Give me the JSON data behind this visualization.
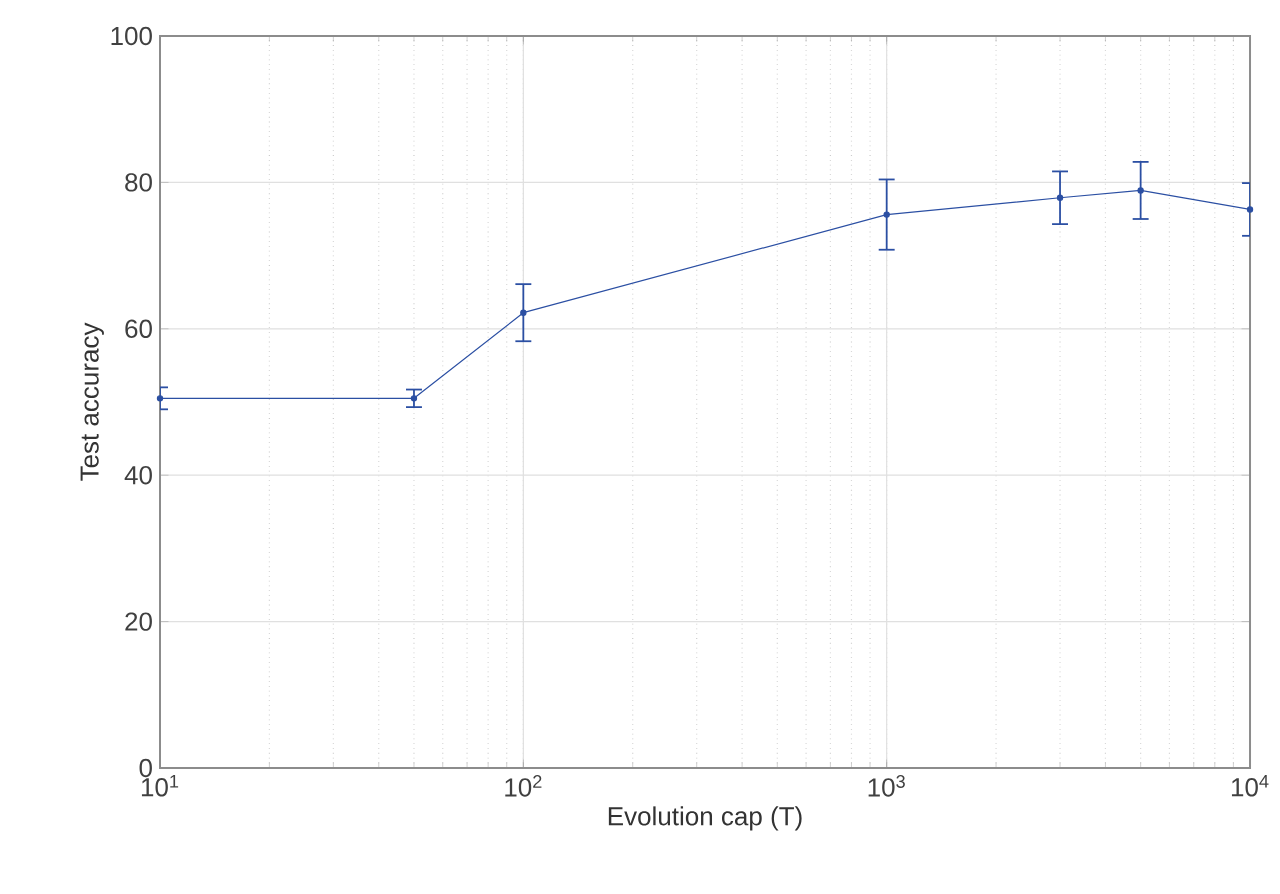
{
  "chart_data": {
    "type": "line",
    "xlabel": "Evolution cap (T)",
    "ylabel": "Test accuracy",
    "x": [
      10,
      50,
      100,
      1000,
      3000,
      5000,
      10000
    ],
    "series": [
      {
        "color": "#2b4fa3",
        "values": [
          50.5,
          50.5,
          62.2,
          75.6,
          77.9,
          78.9,
          76.3
        ],
        "errors": [
          1.5,
          1.2,
          3.9,
          4.8,
          3.6,
          3.9,
          3.6
        ]
      }
    ],
    "log": "x",
    "xlim": [
      10,
      10000
    ],
    "xticks": [
      {
        "value": 10,
        "label": "10$^{1}$"
      },
      {
        "value": 100,
        "label": "10$^{2}$"
      },
      {
        "value": 1000,
        "label": "10$^{3}$"
      },
      {
        "value": 10000,
        "label": "10$^{4}$"
      }
    ],
    "ylim": [
      0,
      100
    ],
    "yticks": [
      0,
      20,
      40,
      60,
      80,
      100
    ],
    "grid": true,
    "marker": "circle",
    "line_style": "solid"
  }
}
